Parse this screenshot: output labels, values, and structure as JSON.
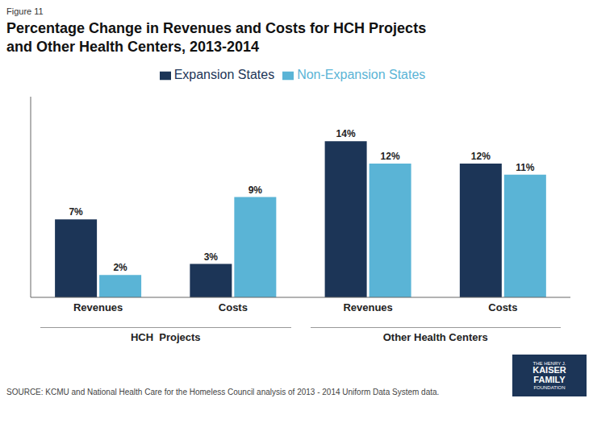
{
  "chart_data": {
    "type": "bar",
    "title": "Percentage Change in Revenues and Costs for HCH Projects",
    "subtitle": "and Other Health Centers, 2013-2014",
    "annotations": [
      "Figure 11",
      "HCH  Projects",
      "Other Health Centers",
      "SOURCE: KCMU and National Health Care for the Homeless Council analysis of 2013 - 2014 Uniform Data System data.",
      "THE HENRY J.",
      "KAISER",
      "FAMILY",
      "FOUNDATION"
    ],
    "categories": [
      "Revenues",
      "Costs",
      "Revenues",
      "Costs"
    ],
    "series": [
      {
        "name": "Expansion States",
        "color": "#1c3557",
        "values": [
          7,
          3,
          14,
          12
        ],
        "value_labels": [
          "7%",
          "3%",
          "14%",
          "12%"
        ]
      },
      {
        "name": "Non-Expansion States",
        "color": "#5ab4d6",
        "values": [
          2,
          9,
          12,
          11
        ],
        "value_labels": [
          "2%",
          "9%",
          "12%",
          "11%"
        ]
      }
    ],
    "ylim": [
      0,
      18
    ],
    "grid": false,
    "legend": "top",
    "data_labels": true,
    "tick_labels": "x"
  }
}
